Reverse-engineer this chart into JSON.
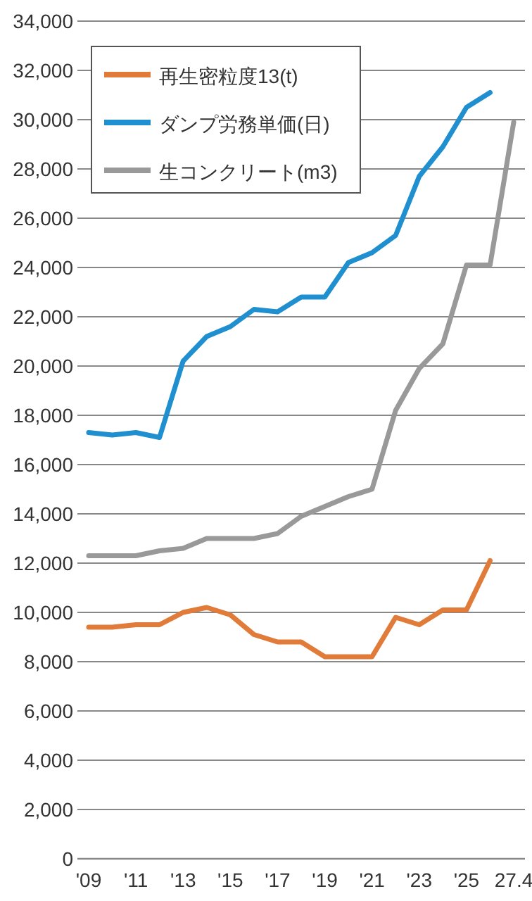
{
  "chart_data": {
    "type": "line",
    "categories": [
      "'09",
      null,
      "'11",
      null,
      "'13",
      null,
      "'15",
      null,
      "'17",
      null,
      "'19",
      null,
      "'21",
      null,
      "'23",
      null,
      "'25",
      null,
      "27.4"
    ],
    "series": [
      {
        "name": "再生密粒度13(t)",
        "color": "#e07b39",
        "values": [
          9400,
          9400,
          9500,
          9500,
          10000,
          10200,
          9900,
          9100,
          8800,
          8800,
          8200,
          8200,
          8200,
          9800,
          9500,
          10100,
          10100,
          12100,
          null
        ]
      },
      {
        "name": "ダンプ労務単価(日)",
        "color": "#1f8fd0",
        "values": [
          17300,
          17200,
          17300,
          17100,
          20200,
          21200,
          21600,
          22300,
          22200,
          22800,
          22800,
          24200,
          24600,
          25300,
          27700,
          28900,
          30500,
          31100,
          null
        ]
      },
      {
        "name": "生コンクリート(m3)",
        "color": "#999999",
        "values": [
          12300,
          12300,
          12300,
          12500,
          12600,
          13000,
          13000,
          13000,
          13200,
          13900,
          14300,
          14700,
          15000,
          18200,
          19900,
          20900,
          24100,
          24100,
          29900
        ]
      }
    ],
    "ylim": [
      0,
      34000
    ],
    "yticks": [
      {
        "value": 0,
        "label": "0"
      },
      {
        "value": 2000,
        "label": "2,000"
      },
      {
        "value": 4000,
        "label": "4,000"
      },
      {
        "value": 6000,
        "label": "6,000"
      },
      {
        "value": 8000,
        "label": "8,000"
      },
      {
        "value": 10000,
        "label": "10,000"
      },
      {
        "value": 12000,
        "label": "12,000"
      },
      {
        "value": 14000,
        "label": "14,000"
      },
      {
        "value": 16000,
        "label": "16,000"
      },
      {
        "value": 18000,
        "label": "18,000"
      },
      {
        "value": 20000,
        "label": "20,000"
      },
      {
        "value": 22000,
        "label": "22,000"
      },
      {
        "value": 24000,
        "label": "24,000"
      },
      {
        "value": 26000,
        "label": "26,000"
      },
      {
        "value": 28000,
        "label": "28,000"
      },
      {
        "value": 30000,
        "label": "30,000"
      },
      {
        "value": 32000,
        "label": "32,000"
      },
      {
        "value": 34000,
        "label": "34,000"
      }
    ],
    "grid": "y",
    "legend": "top left",
    "marker": "none",
    "line_style": "solid"
  }
}
